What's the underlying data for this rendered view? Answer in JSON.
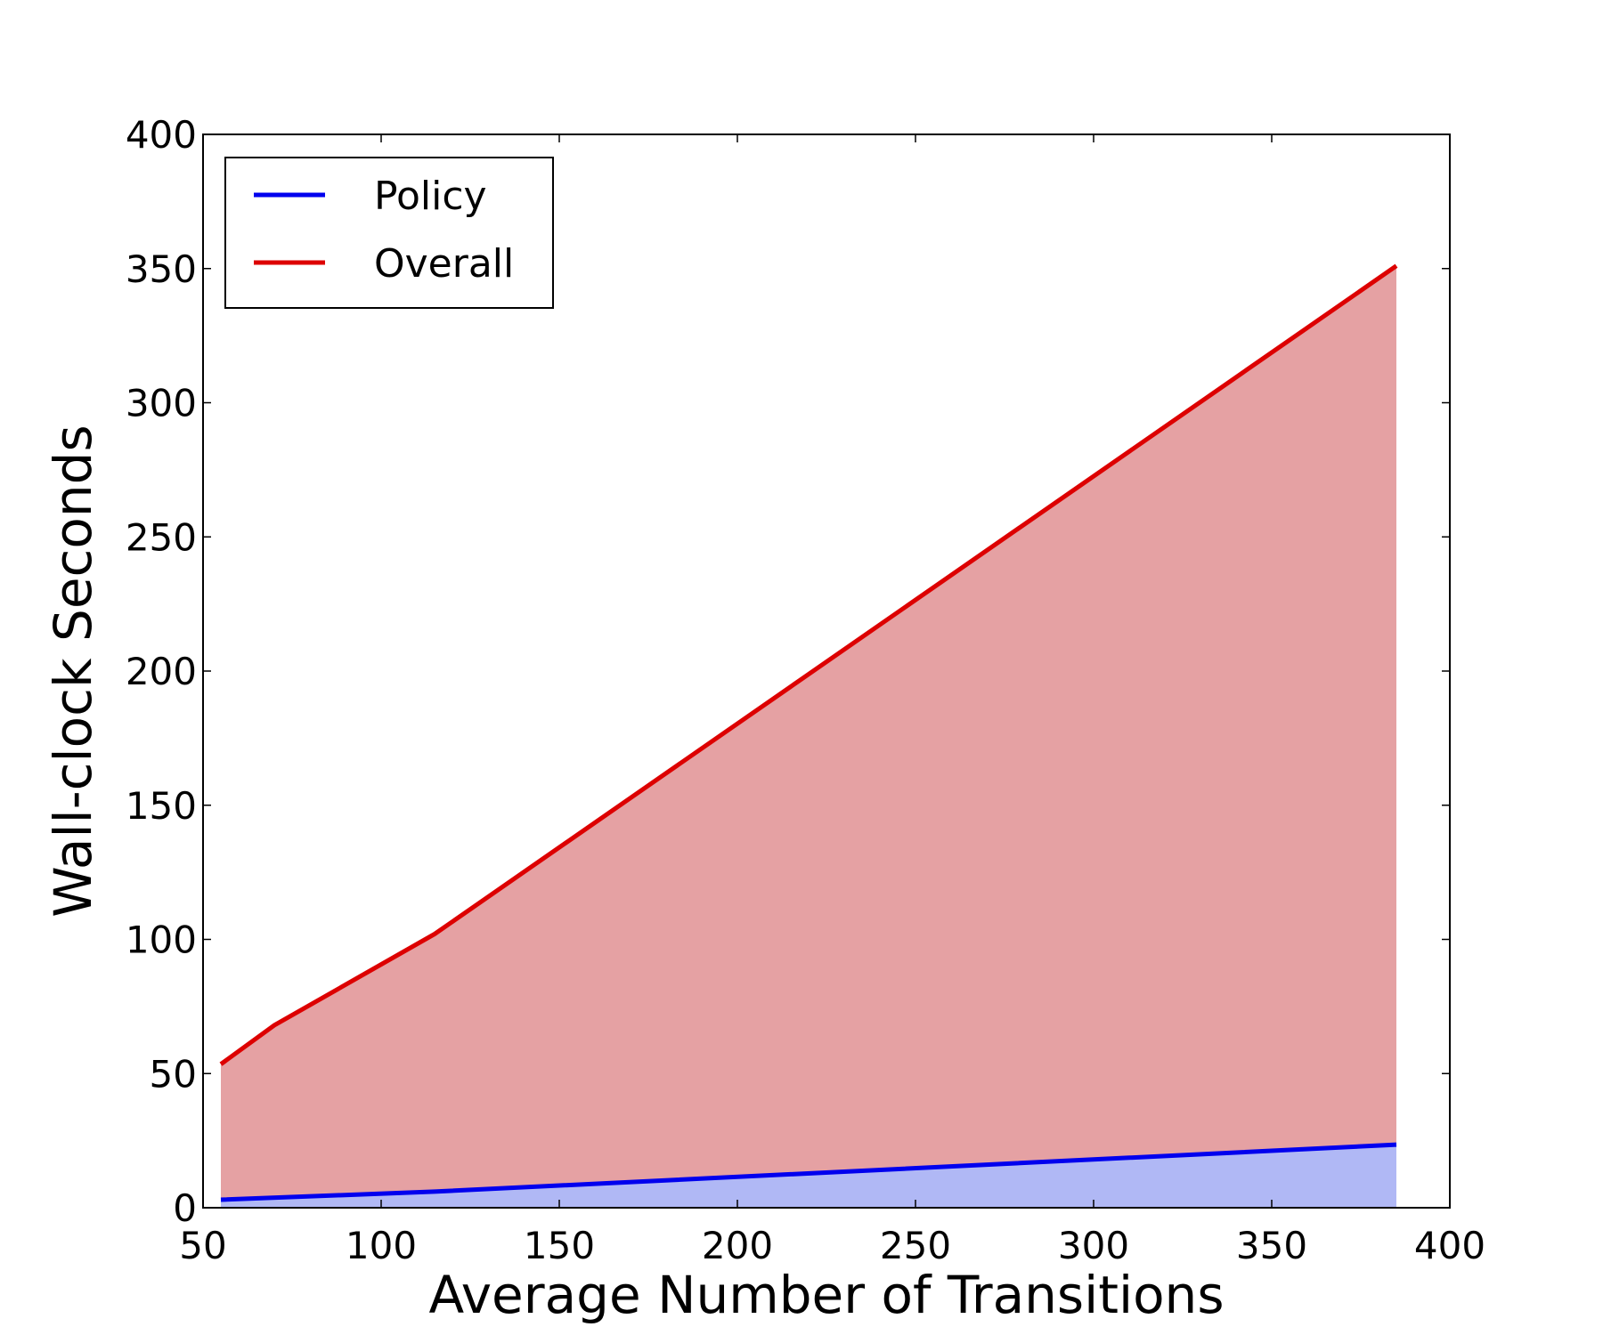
{
  "chart_data": {
    "type": "area",
    "title": "",
    "xlabel": "Average Number of Transitions",
    "ylabel": "Wall-clock Seconds",
    "xlim": [
      50,
      400
    ],
    "ylim": [
      0,
      400
    ],
    "xticks": [
      50,
      100,
      150,
      200,
      250,
      300,
      350,
      400
    ],
    "yticks": [
      0,
      50,
      100,
      150,
      200,
      250,
      300,
      350,
      400
    ],
    "grid": false,
    "legend_position": "top-left",
    "series": [
      {
        "name": "Policy",
        "color": "#0000ee",
        "fill_color": "#b0b8f5",
        "x": [
          55,
          115,
          385
        ],
        "y": [
          3,
          6,
          23.5
        ]
      },
      {
        "name": "Overall",
        "color": "#dd0000",
        "fill_color": "#e5a1a3",
        "x": [
          55,
          70,
          115,
          385
        ],
        "y": [
          53.5,
          68,
          102,
          351
        ]
      }
    ]
  }
}
